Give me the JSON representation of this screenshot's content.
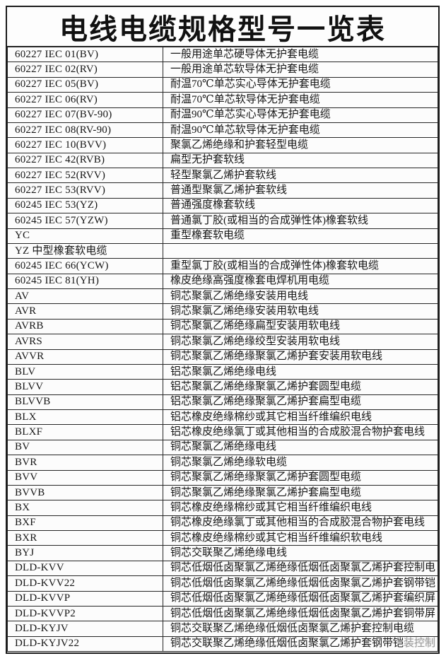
{
  "title": "电线电缆规格型号一览表",
  "colors": {
    "border": "#262626",
    "outer_border": "#1c1c1c",
    "text": "#161616",
    "faded_text": "#9b9b9b",
    "background": "#ffffff",
    "cell_background": "#fcfcfc"
  },
  "table": {
    "rows": [
      {
        "code": "60227 IEC 01(BV)",
        "desc": "一般用途单芯硬导体无护套电缆",
        "faded": ""
      },
      {
        "code": "60227 IEC 02(RV)",
        "desc": "一般用途单芯软导体无护套电缆",
        "faded": ""
      },
      {
        "code": "60227 IEC 05(BV)",
        "desc": "耐温70℃单芯实心导体无护套电缆",
        "faded": ""
      },
      {
        "code": "60227 IEC 06(RV)",
        "desc": "耐温70℃单芯软导体无护套电缆",
        "faded": ""
      },
      {
        "code": "60227 IEC 07(BV-90)",
        "desc": "耐温90℃单芯实心导体无护套电缆",
        "faded": ""
      },
      {
        "code": "60227 IEC 08(RV-90)",
        "desc": "耐温90℃单芯软导体无护套电缆",
        "faded": ""
      },
      {
        "code": "60227 IEC 10(BVV)",
        "desc": "聚氯乙烯绝缘和护套轻型电缆",
        "faded": ""
      },
      {
        "code": "60227 IEC 42(RVB)",
        "desc": "扁型无护套软线",
        "faded": ""
      },
      {
        "code": "60227 IEC 52(RVV)",
        "desc": "轻型聚氯乙烯护套软线",
        "faded": ""
      },
      {
        "code": "60227 IEC 53(RVV)",
        "desc": "普通型聚氯乙烯护套软线",
        "faded": ""
      },
      {
        "code": "60245 IEC 53(YZ)",
        "desc": "普通强度橡套软线",
        "faded": ""
      },
      {
        "code": "60245 IEC 57(YZW)",
        "desc": "普通氯丁胶(或相当的合成弹性体)橡套软线",
        "faded": ""
      },
      {
        "code": "YC",
        "desc": "重型橡套软电缆",
        "faded": ""
      },
      {
        "code": "YZ 中型橡套软电缆",
        "desc": "",
        "faded": ""
      },
      {
        "code": "60245 IEC 66(YCW)",
        "desc": "重型氯丁胶(或相当的合成弹性体)橡套软电缆",
        "faded": ""
      },
      {
        "code": "60245 IEC 81(YH)",
        "desc": "橡皮绝缘高强度橡套电焊机用电缆",
        "faded": ""
      },
      {
        "code": "AV",
        "desc": "铜芯聚氯乙烯绝缘安装用电线",
        "faded": ""
      },
      {
        "code": "AVR",
        "desc": "铜芯聚氯乙烯绝缘安装用软电线",
        "faded": ""
      },
      {
        "code": "AVRB",
        "desc": "铜芯聚氯乙烯绝缘扁型安装用软电线",
        "faded": ""
      },
      {
        "code": "AVRS",
        "desc": "铜芯聚氯乙烯绝缘绞型安装用软电线",
        "faded": ""
      },
      {
        "code": "AVVR",
        "desc": "铜芯聚氯乙烯绝缘聚氯乙烯护套安装用软电线",
        "faded": ""
      },
      {
        "code": "BLV",
        "desc": "铝芯聚氯乙烯绝缘电线",
        "faded": ""
      },
      {
        "code": "BLVV",
        "desc": "铝芯聚氯乙烯绝缘聚氯乙烯护套圆型电缆",
        "faded": ""
      },
      {
        "code": "BLVVB",
        "desc": "铝芯聚氯乙烯绝缘聚氯乙烯护套扁型电缆",
        "faded": ""
      },
      {
        "code": "BLX",
        "desc": "铝芯橡皮绝缘棉纱或其它相当纤维编织电线",
        "faded": ""
      },
      {
        "code": "BLXF",
        "desc": "铝芯橡皮绝缘氯丁或其他相当的合成胶混合物护套电线",
        "faded": ""
      },
      {
        "code": "BV",
        "desc": "铜芯聚氯乙烯绝缘电线",
        "faded": ""
      },
      {
        "code": "BVR",
        "desc": "铜芯聚氯乙烯绝缘软电缆",
        "faded": ""
      },
      {
        "code": "BVV",
        "desc": "铜芯聚氯乙烯绝缘聚氯乙烯护套圆型电缆",
        "faded": ""
      },
      {
        "code": "BVVB",
        "desc": "铜芯聚氯乙烯绝缘聚氯乙烯护套扁型电缆",
        "faded": ""
      },
      {
        "code": "BX",
        "desc": "铜芯橡皮绝缘棉纱或其它相当纤维编织电线",
        "faded": ""
      },
      {
        "code": "BXF",
        "desc": "铜芯橡皮绝缘氯丁或其他相当的合成胶混合物护套电线",
        "faded": ""
      },
      {
        "code": "BXR",
        "desc": "铜芯橡皮绝缘棉纱或其它相当纤维编织软电线",
        "faded": ""
      },
      {
        "code": "BYJ",
        "desc": "铜芯交联聚乙烯绝缘电线",
        "faded": ""
      },
      {
        "code": "DLD-KVV",
        "desc": "铜芯低烟低卤聚氯乙烯绝缘低烟低卤聚氯乙烯护套控制电",
        "faded": ""
      },
      {
        "code": "DLD-KVV22",
        "desc": "铜芯低烟低卤聚氯乙烯绝缘低烟低卤聚氯乙烯护套钢带铠",
        "faded": ""
      },
      {
        "code": "DLD-KVVP",
        "desc": "铜芯低烟低卤聚氯乙烯绝缘低烟低卤聚氯乙烯护套编织屏",
        "faded": ""
      },
      {
        "code": "DLD-KVVP2",
        "desc": "铜芯低烟低卤聚氯乙烯绝缘低烟低卤聚氯乙烯护套铜带屏",
        "faded": ""
      },
      {
        "code": "DLD-KYJV",
        "desc": "铜芯交联聚乙烯绝缘低烟低卤聚氯乙烯护套控制电缆",
        "faded": ""
      },
      {
        "code": "DLD-KYJV22",
        "desc": "铜芯交联聚乙烯绝缘低烟低卤聚氯乙烯护套钢带铠",
        "faded": "装控制"
      }
    ]
  }
}
